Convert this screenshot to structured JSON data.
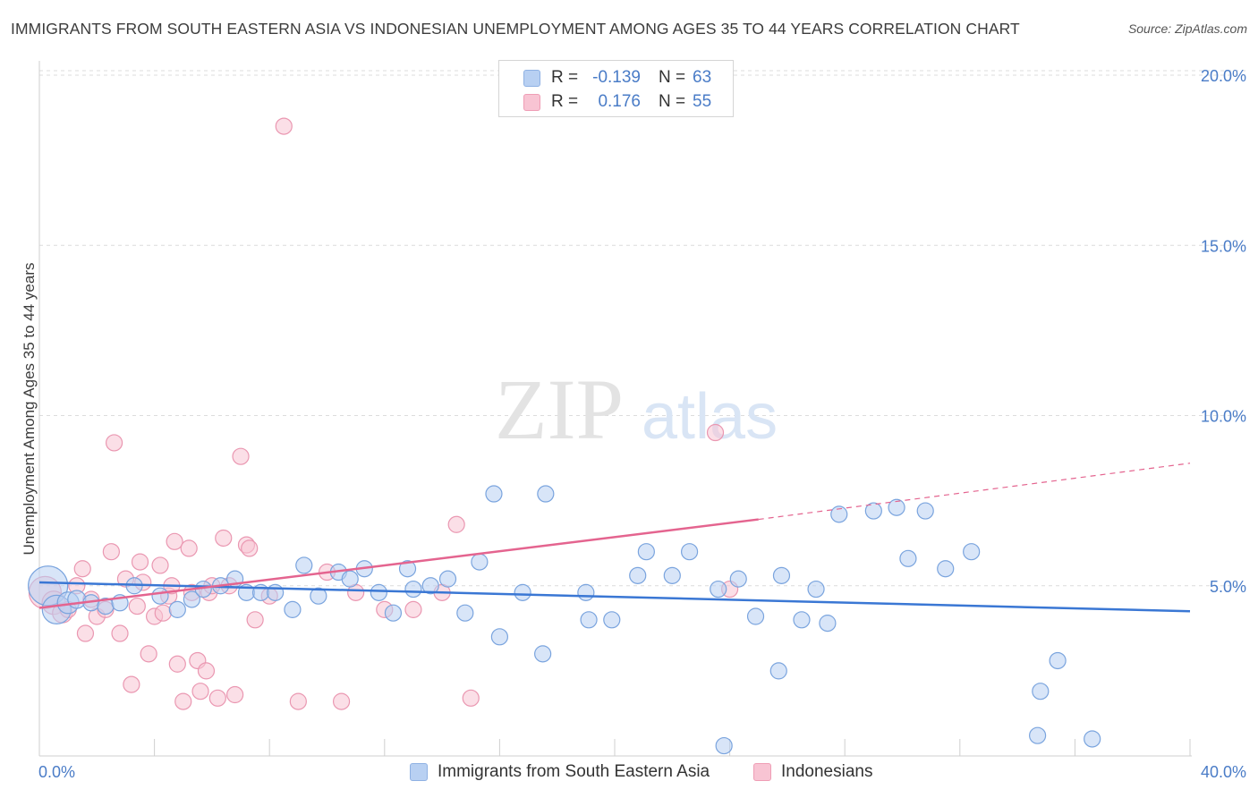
{
  "header": {
    "title": "IMMIGRANTS FROM SOUTH EASTERN ASIA VS INDONESIAN UNEMPLOYMENT AMONG AGES 35 TO 44 YEARS CORRELATION CHART",
    "source": "Source: ZipAtlas.com"
  },
  "watermark": {
    "zip": "ZIP",
    "atlas": "atlas"
  },
  "legend": {
    "rows": [
      {
        "r_label": "R =",
        "r_value": "-0.139",
        "n_label": "N =",
        "n_value": "63"
      },
      {
        "r_label": "R =",
        "r_value": "0.176",
        "n_label": "N =",
        "n_value": "55"
      }
    ]
  },
  "bottom_legend": {
    "blue_label": "Immigrants from South Eastern Asia",
    "pink_label": "Indonesians"
  },
  "colors": {
    "blue_fill": "#b8d0f2",
    "blue_stroke": "#7aa4de",
    "blue_line": "#3a77d4",
    "pink_fill": "#f8c4d3",
    "pink_stroke": "#ea97b1",
    "pink_line": "#e4648f",
    "grid": "#dcdcdc",
    "tick_text": "#4a7cc7"
  },
  "chart_data": {
    "type": "scatter",
    "title": "IMMIGRANTS FROM SOUTH EASTERN ASIA VS INDONESIAN UNEMPLOYMENT AMONG AGES 35 TO 44 YEARS CORRELATION CHART",
    "xlabel": "",
    "ylabel": "Unemployment Among Ages 35 to 44 years",
    "xlim": [
      0,
      40
    ],
    "ylim": [
      0,
      20.5
    ],
    "x_tick_labels": [
      "0.0%",
      "40.0%"
    ],
    "y_ticks": [
      5,
      10,
      15,
      20
    ],
    "y_tick_labels": [
      "5.0%",
      "10.0%",
      "15.0%",
      "20.0%"
    ],
    "grid": "horizontal dashed",
    "series": [
      {
        "name": "Immigrants from South Eastern Asia",
        "color": "#b8d0f2",
        "points": [
          [
            0.3,
            5.0,
            22
          ],
          [
            0.6,
            4.3,
            16
          ],
          [
            1.0,
            4.5,
            12
          ],
          [
            1.3,
            4.6,
            10
          ],
          [
            1.8,
            4.5,
            9
          ],
          [
            2.3,
            4.4,
            9
          ],
          [
            2.8,
            4.5,
            9
          ],
          [
            3.3,
            5.0,
            9
          ],
          [
            4.2,
            4.7,
            9
          ],
          [
            4.8,
            4.3,
            9
          ],
          [
            5.3,
            4.6,
            9
          ],
          [
            5.7,
            4.9,
            9
          ],
          [
            6.3,
            5.0,
            9
          ],
          [
            6.8,
            5.2,
            9
          ],
          [
            7.2,
            4.8,
            9
          ],
          [
            7.7,
            4.8,
            9
          ],
          [
            8.2,
            4.8,
            9
          ],
          [
            8.8,
            4.3,
            9
          ],
          [
            9.2,
            5.6,
            9
          ],
          [
            9.7,
            4.7,
            9
          ],
          [
            10.4,
            5.4,
            9
          ],
          [
            10.8,
            5.2,
            9
          ],
          [
            11.3,
            5.5,
            9
          ],
          [
            11.8,
            4.8,
            9
          ],
          [
            12.3,
            4.2,
            9
          ],
          [
            12.8,
            5.5,
            9
          ],
          [
            13.0,
            4.9,
            9
          ],
          [
            13.6,
            5.0,
            9
          ],
          [
            14.2,
            5.2,
            9
          ],
          [
            14.8,
            4.2,
            9
          ],
          [
            15.3,
            5.7,
            9
          ],
          [
            15.8,
            7.7,
            9
          ],
          [
            16.0,
            3.5,
            9
          ],
          [
            16.8,
            4.8,
            9
          ],
          [
            17.5,
            3.0,
            9
          ],
          [
            17.6,
            7.7,
            9
          ],
          [
            19.0,
            4.8,
            9
          ],
          [
            19.1,
            4.0,
            9
          ],
          [
            19.9,
            4.0,
            9
          ],
          [
            20.8,
            5.3,
            9
          ],
          [
            21.1,
            6.0,
            9
          ],
          [
            22.0,
            5.3,
            9
          ],
          [
            22.6,
            6.0,
            9
          ],
          [
            23.6,
            4.9,
            9
          ],
          [
            23.8,
            0.3,
            9
          ],
          [
            24.3,
            5.2,
            9
          ],
          [
            24.9,
            4.1,
            9
          ],
          [
            25.7,
            2.5,
            9
          ],
          [
            25.8,
            5.3,
            9
          ],
          [
            26.5,
            4.0,
            9
          ],
          [
            27.0,
            4.9,
            9
          ],
          [
            27.4,
            3.9,
            9
          ],
          [
            27.8,
            7.1,
            9
          ],
          [
            29.0,
            7.2,
            9
          ],
          [
            29.8,
            7.3,
            9
          ],
          [
            30.2,
            5.8,
            9
          ],
          [
            30.8,
            7.2,
            9
          ],
          [
            31.5,
            5.5,
            9
          ],
          [
            32.4,
            6.0,
            9
          ],
          [
            34.7,
            0.6,
            9
          ],
          [
            34.8,
            1.9,
            9
          ],
          [
            35.4,
            2.8,
            9
          ],
          [
            36.6,
            0.5,
            9
          ]
        ],
        "trend": {
          "x0": 0,
          "y0": 5.1,
          "x1": 40,
          "y1": 4.25,
          "dashed_after": null
        }
      },
      {
        "name": "Indonesians",
        "color": "#f8c4d3",
        "points": [
          [
            0.2,
            4.8,
            18
          ],
          [
            0.5,
            4.5,
            13
          ],
          [
            0.8,
            4.2,
            11
          ],
          [
            1.0,
            4.3,
            9
          ],
          [
            1.3,
            5.0,
            9
          ],
          [
            1.5,
            5.5,
            9
          ],
          [
            1.6,
            3.6,
            9
          ],
          [
            1.8,
            4.6,
            9
          ],
          [
            2.0,
            4.1,
            9
          ],
          [
            2.3,
            4.3,
            9
          ],
          [
            2.5,
            6.0,
            9
          ],
          [
            2.6,
            9.2,
            9
          ],
          [
            2.8,
            3.6,
            9
          ],
          [
            3.0,
            5.2,
            9
          ],
          [
            3.2,
            2.1,
            9
          ],
          [
            3.4,
            4.4,
            9
          ],
          [
            3.5,
            5.7,
            9
          ],
          [
            3.6,
            5.1,
            9
          ],
          [
            3.8,
            3.0,
            9
          ],
          [
            4.0,
            4.1,
            9
          ],
          [
            4.2,
            5.6,
            9
          ],
          [
            4.3,
            4.2,
            9
          ],
          [
            4.5,
            4.7,
            9
          ],
          [
            4.6,
            5.0,
            9
          ],
          [
            4.7,
            6.3,
            9
          ],
          [
            4.8,
            2.7,
            9
          ],
          [
            5.0,
            1.6,
            9
          ],
          [
            5.2,
            6.1,
            9
          ],
          [
            5.3,
            4.8,
            9
          ],
          [
            5.5,
            2.8,
            9
          ],
          [
            5.6,
            1.9,
            9
          ],
          [
            5.8,
            2.5,
            9
          ],
          [
            5.9,
            4.8,
            9
          ],
          [
            6.0,
            5.0,
            9
          ],
          [
            6.2,
            1.7,
            9
          ],
          [
            6.4,
            6.4,
            9
          ],
          [
            6.6,
            5.0,
            9
          ],
          [
            6.8,
            1.8,
            9
          ],
          [
            7.0,
            8.8,
            9
          ],
          [
            7.2,
            6.2,
            9
          ],
          [
            7.3,
            6.1,
            9
          ],
          [
            7.5,
            4.0,
            9
          ],
          [
            8.0,
            4.7,
            9
          ],
          [
            8.5,
            18.5,
            9
          ],
          [
            9.0,
            1.6,
            9
          ],
          [
            10.0,
            5.4,
            9
          ],
          [
            10.5,
            1.6,
            9
          ],
          [
            11.0,
            4.8,
            9
          ],
          [
            12.0,
            4.3,
            9
          ],
          [
            13.0,
            4.3,
            9
          ],
          [
            14.0,
            4.8,
            9
          ],
          [
            14.5,
            6.8,
            9
          ],
          [
            15.0,
            1.7,
            9
          ],
          [
            23.5,
            9.5,
            9
          ],
          [
            24.0,
            4.9,
            9
          ]
        ],
        "trend": {
          "x0": 0,
          "y0": 4.35,
          "x1": 25,
          "y1": 6.95,
          "dashed_to_x": 40,
          "dashed_to_y": 8.6
        }
      }
    ]
  }
}
